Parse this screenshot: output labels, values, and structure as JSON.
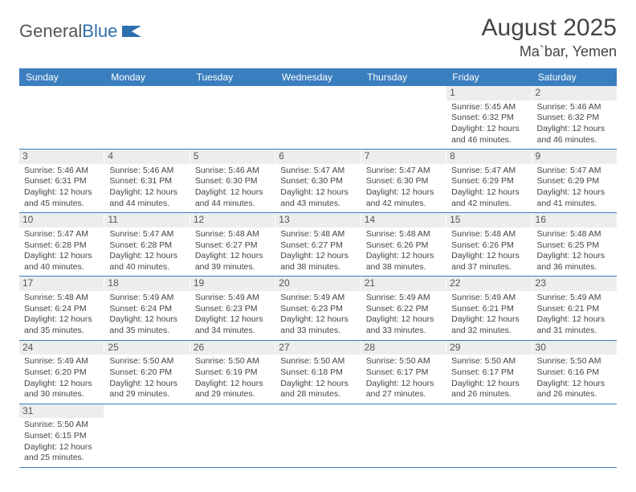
{
  "logo": {
    "text1": "General",
    "text2": "Blue"
  },
  "title": "August 2025",
  "location": "Ma`bar, Yemen",
  "colors": {
    "header_bg": "#3a7ebf",
    "header_text": "#ffffff",
    "daynum_bg": "#eceded",
    "row_border": "#3a7ebf",
    "body_text": "#444444"
  },
  "days_of_week": [
    "Sunday",
    "Monday",
    "Tuesday",
    "Wednesday",
    "Thursday",
    "Friday",
    "Saturday"
  ],
  "weeks": [
    [
      {
        "n": "",
        "sunrise": "",
        "sunset": "",
        "daylight": ""
      },
      {
        "n": "",
        "sunrise": "",
        "sunset": "",
        "daylight": ""
      },
      {
        "n": "",
        "sunrise": "",
        "sunset": "",
        "daylight": ""
      },
      {
        "n": "",
        "sunrise": "",
        "sunset": "",
        "daylight": ""
      },
      {
        "n": "",
        "sunrise": "",
        "sunset": "",
        "daylight": ""
      },
      {
        "n": "1",
        "sunrise": "Sunrise: 5:45 AM",
        "sunset": "Sunset: 6:32 PM",
        "daylight": "Daylight: 12 hours and 46 minutes."
      },
      {
        "n": "2",
        "sunrise": "Sunrise: 5:46 AM",
        "sunset": "Sunset: 6:32 PM",
        "daylight": "Daylight: 12 hours and 46 minutes."
      }
    ],
    [
      {
        "n": "3",
        "sunrise": "Sunrise: 5:46 AM",
        "sunset": "Sunset: 6:31 PM",
        "daylight": "Daylight: 12 hours and 45 minutes."
      },
      {
        "n": "4",
        "sunrise": "Sunrise: 5:46 AM",
        "sunset": "Sunset: 6:31 PM",
        "daylight": "Daylight: 12 hours and 44 minutes."
      },
      {
        "n": "5",
        "sunrise": "Sunrise: 5:46 AM",
        "sunset": "Sunset: 6:30 PM",
        "daylight": "Daylight: 12 hours and 44 minutes."
      },
      {
        "n": "6",
        "sunrise": "Sunrise: 5:47 AM",
        "sunset": "Sunset: 6:30 PM",
        "daylight": "Daylight: 12 hours and 43 minutes."
      },
      {
        "n": "7",
        "sunrise": "Sunrise: 5:47 AM",
        "sunset": "Sunset: 6:30 PM",
        "daylight": "Daylight: 12 hours and 42 minutes."
      },
      {
        "n": "8",
        "sunrise": "Sunrise: 5:47 AM",
        "sunset": "Sunset: 6:29 PM",
        "daylight": "Daylight: 12 hours and 42 minutes."
      },
      {
        "n": "9",
        "sunrise": "Sunrise: 5:47 AM",
        "sunset": "Sunset: 6:29 PM",
        "daylight": "Daylight: 12 hours and 41 minutes."
      }
    ],
    [
      {
        "n": "10",
        "sunrise": "Sunrise: 5:47 AM",
        "sunset": "Sunset: 6:28 PM",
        "daylight": "Daylight: 12 hours and 40 minutes."
      },
      {
        "n": "11",
        "sunrise": "Sunrise: 5:47 AM",
        "sunset": "Sunset: 6:28 PM",
        "daylight": "Daylight: 12 hours and 40 minutes."
      },
      {
        "n": "12",
        "sunrise": "Sunrise: 5:48 AM",
        "sunset": "Sunset: 6:27 PM",
        "daylight": "Daylight: 12 hours and 39 minutes."
      },
      {
        "n": "13",
        "sunrise": "Sunrise: 5:48 AM",
        "sunset": "Sunset: 6:27 PM",
        "daylight": "Daylight: 12 hours and 38 minutes."
      },
      {
        "n": "14",
        "sunrise": "Sunrise: 5:48 AM",
        "sunset": "Sunset: 6:26 PM",
        "daylight": "Daylight: 12 hours and 38 minutes."
      },
      {
        "n": "15",
        "sunrise": "Sunrise: 5:48 AM",
        "sunset": "Sunset: 6:26 PM",
        "daylight": "Daylight: 12 hours and 37 minutes."
      },
      {
        "n": "16",
        "sunrise": "Sunrise: 5:48 AM",
        "sunset": "Sunset: 6:25 PM",
        "daylight": "Daylight: 12 hours and 36 minutes."
      }
    ],
    [
      {
        "n": "17",
        "sunrise": "Sunrise: 5:48 AM",
        "sunset": "Sunset: 6:24 PM",
        "daylight": "Daylight: 12 hours and 35 minutes."
      },
      {
        "n": "18",
        "sunrise": "Sunrise: 5:49 AM",
        "sunset": "Sunset: 6:24 PM",
        "daylight": "Daylight: 12 hours and 35 minutes."
      },
      {
        "n": "19",
        "sunrise": "Sunrise: 5:49 AM",
        "sunset": "Sunset: 6:23 PM",
        "daylight": "Daylight: 12 hours and 34 minutes."
      },
      {
        "n": "20",
        "sunrise": "Sunrise: 5:49 AM",
        "sunset": "Sunset: 6:23 PM",
        "daylight": "Daylight: 12 hours and 33 minutes."
      },
      {
        "n": "21",
        "sunrise": "Sunrise: 5:49 AM",
        "sunset": "Sunset: 6:22 PM",
        "daylight": "Daylight: 12 hours and 33 minutes."
      },
      {
        "n": "22",
        "sunrise": "Sunrise: 5:49 AM",
        "sunset": "Sunset: 6:21 PM",
        "daylight": "Daylight: 12 hours and 32 minutes."
      },
      {
        "n": "23",
        "sunrise": "Sunrise: 5:49 AM",
        "sunset": "Sunset: 6:21 PM",
        "daylight": "Daylight: 12 hours and 31 minutes."
      }
    ],
    [
      {
        "n": "24",
        "sunrise": "Sunrise: 5:49 AM",
        "sunset": "Sunset: 6:20 PM",
        "daylight": "Daylight: 12 hours and 30 minutes."
      },
      {
        "n": "25",
        "sunrise": "Sunrise: 5:50 AM",
        "sunset": "Sunset: 6:20 PM",
        "daylight": "Daylight: 12 hours and 29 minutes."
      },
      {
        "n": "26",
        "sunrise": "Sunrise: 5:50 AM",
        "sunset": "Sunset: 6:19 PM",
        "daylight": "Daylight: 12 hours and 29 minutes."
      },
      {
        "n": "27",
        "sunrise": "Sunrise: 5:50 AM",
        "sunset": "Sunset: 6:18 PM",
        "daylight": "Daylight: 12 hours and 28 minutes."
      },
      {
        "n": "28",
        "sunrise": "Sunrise: 5:50 AM",
        "sunset": "Sunset: 6:17 PM",
        "daylight": "Daylight: 12 hours and 27 minutes."
      },
      {
        "n": "29",
        "sunrise": "Sunrise: 5:50 AM",
        "sunset": "Sunset: 6:17 PM",
        "daylight": "Daylight: 12 hours and 26 minutes."
      },
      {
        "n": "30",
        "sunrise": "Sunrise: 5:50 AM",
        "sunset": "Sunset: 6:16 PM",
        "daylight": "Daylight: 12 hours and 26 minutes."
      }
    ],
    [
      {
        "n": "31",
        "sunrise": "Sunrise: 5:50 AM",
        "sunset": "Sunset: 6:15 PM",
        "daylight": "Daylight: 12 hours and 25 minutes."
      },
      {
        "n": "",
        "sunrise": "",
        "sunset": "",
        "daylight": ""
      },
      {
        "n": "",
        "sunrise": "",
        "sunset": "",
        "daylight": ""
      },
      {
        "n": "",
        "sunrise": "",
        "sunset": "",
        "daylight": ""
      },
      {
        "n": "",
        "sunrise": "",
        "sunset": "",
        "daylight": ""
      },
      {
        "n": "",
        "sunrise": "",
        "sunset": "",
        "daylight": ""
      },
      {
        "n": "",
        "sunrise": "",
        "sunset": "",
        "daylight": ""
      }
    ]
  ]
}
